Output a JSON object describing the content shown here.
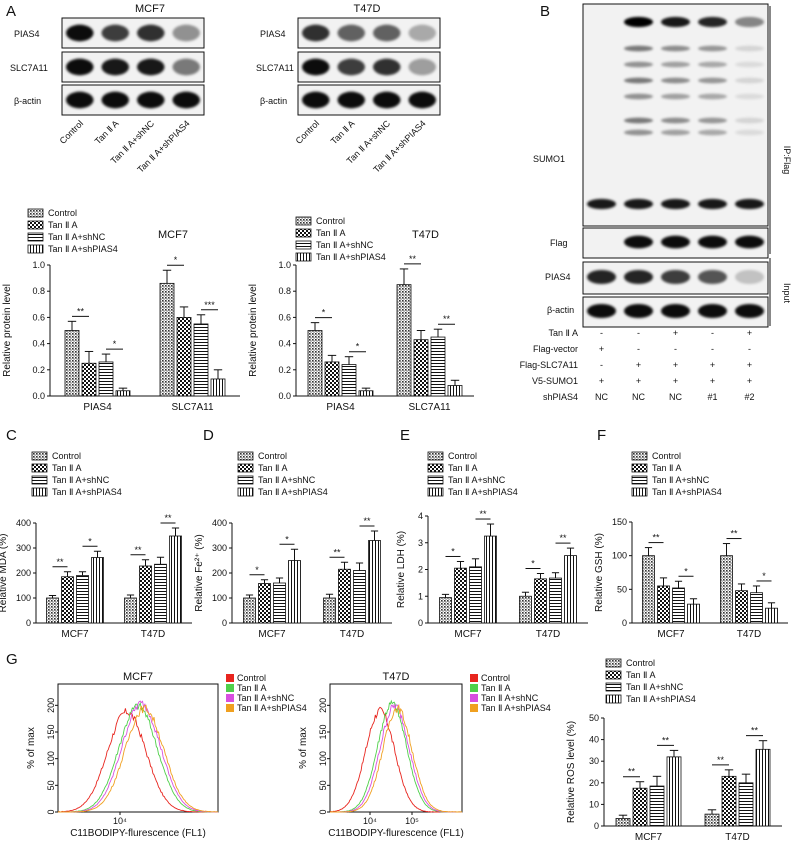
{
  "panels": {
    "A": "A",
    "B": "B",
    "C": "C",
    "D": "D",
    "E": "E",
    "F": "F",
    "G": "G"
  },
  "panelA": {
    "cell_lines": [
      "MCF7",
      "T47D"
    ],
    "blot_labels": [
      "PIAS4",
      "SLC7A11",
      "β-actin"
    ],
    "lanes": [
      "Control",
      "Tan Ⅱ A",
      "Tan Ⅱ A+shNC",
      "Tan Ⅱ A+shPIAS4"
    ],
    "legend": [
      "Control",
      "Tan Ⅱ A",
      "Tan Ⅱ A+shNC",
      "Tan Ⅱ A+shPIAS4"
    ]
  },
  "panelB": {
    "blot_labels": [
      "SUMO1",
      "Flag",
      "PIAS4",
      "β-actin"
    ],
    "side_labels": [
      "IP:Flag",
      "Input"
    ],
    "table": {
      "rows": [
        {
          "label": "Tan Ⅱ A",
          "vals": [
            "-",
            "-",
            "+",
            "-",
            "+"
          ]
        },
        {
          "label": "Flag-vector",
          "vals": [
            "+",
            "-",
            "-",
            "-",
            "-"
          ]
        },
        {
          "label": "Flag-SLC7A11",
          "vals": [
            "-",
            "+",
            "+",
            "+",
            "+"
          ]
        },
        {
          "label": "V5-SUMO1",
          "vals": [
            "+",
            "+",
            "+",
            "+",
            "+"
          ]
        },
        {
          "label": "shPIAS4",
          "vals": [
            "NC",
            "NC",
            "NC",
            "#1",
            "#2"
          ]
        }
      ]
    }
  },
  "panelG": {
    "titles": [
      "MCF7",
      "T47D"
    ],
    "ylabel": "% of max",
    "xlabel": "C11BODIPY-flurescence (FL1)",
    "legend": [
      {
        "name": "Control",
        "color": "#e8251e"
      },
      {
        "name": "Tan Ⅱ A",
        "color": "#4fd04a"
      },
      {
        "name": "Tan Ⅱ A+shNC",
        "color": "#d84fe0"
      },
      {
        "name": "Tan Ⅱ A+shPIAS4",
        "color": "#f0a020"
      }
    ],
    "yticks_left": [
      "0",
      "50",
      "100",
      "150",
      "200"
    ],
    "yticks_right": [
      "0",
      "50",
      "100",
      "150",
      "200"
    ],
    "xticks_left": [
      "10⁴"
    ],
    "xticks_right": [
      "10⁴",
      "10⁵"
    ]
  },
  "chart_data": [
    {
      "type": "bar",
      "id": "A-MCF7",
      "title": "MCF7",
      "ylabel": "Relative protein level",
      "categories": [
        "PIAS4",
        "SLC7A11"
      ],
      "ylim": [
        0,
        1.0
      ],
      "yticks": [
        "0.0",
        "0.2",
        "0.4",
        "0.6",
        "0.8",
        "1.0"
      ],
      "series": [
        {
          "name": "Control",
          "values": [
            0.5,
            0.86
          ]
        },
        {
          "name": "Tan Ⅱ A",
          "values": [
            0.25,
            0.6
          ]
        },
        {
          "name": "Tan Ⅱ A+shNC",
          "values": [
            0.26,
            0.55
          ]
        },
        {
          "name": "Tan Ⅱ A+shPIAS4",
          "values": [
            0.04,
            0.13
          ]
        }
      ],
      "errors": [
        [
          0.07,
          0.1
        ],
        [
          0.09,
          0.08
        ],
        [
          0.06,
          0.07
        ],
        [
          0.02,
          0.07
        ]
      ],
      "sig": [
        {
          "cat": 0,
          "a": 0,
          "b": 1,
          "t": "**"
        },
        {
          "cat": 0,
          "a": 2,
          "b": 3,
          "t": "*"
        },
        {
          "cat": 1,
          "a": 0,
          "b": 1,
          "t": "*"
        },
        {
          "cat": 1,
          "a": 2,
          "b": 3,
          "t": "***"
        }
      ]
    },
    {
      "type": "bar",
      "id": "A-T47D",
      "title": "T47D",
      "ylabel": "Relative protein level",
      "categories": [
        "PIAS4",
        "SLC7A11"
      ],
      "ylim": [
        0,
        1.0
      ],
      "yticks": [
        "0.0",
        "0.2",
        "0.4",
        "0.6",
        "0.8",
        "1.0"
      ],
      "series": [
        {
          "name": "Control",
          "values": [
            0.5,
            0.85
          ]
        },
        {
          "name": "Tan Ⅱ A",
          "values": [
            0.26,
            0.43
          ]
        },
        {
          "name": "Tan Ⅱ A+shNC",
          "values": [
            0.24,
            0.45
          ]
        },
        {
          "name": "Tan Ⅱ A+shPIAS4",
          "values": [
            0.04,
            0.08
          ]
        }
      ],
      "errors": [
        [
          0.06,
          0.12
        ],
        [
          0.05,
          0.07
        ],
        [
          0.06,
          0.06
        ],
        [
          0.02,
          0.04
        ]
      ],
      "sig": [
        {
          "cat": 0,
          "a": 0,
          "b": 1,
          "t": "*"
        },
        {
          "cat": 0,
          "a": 2,
          "b": 3,
          "t": "*"
        },
        {
          "cat": 1,
          "a": 0,
          "b": 1,
          "t": "**"
        },
        {
          "cat": 1,
          "a": 2,
          "b": 3,
          "t": "**"
        }
      ]
    },
    {
      "type": "bar",
      "id": "C",
      "ylabel": "Relative MDA (%)",
      "categories": [
        "MCF7",
        "T47D"
      ],
      "ylim": [
        0,
        400
      ],
      "yticks": [
        "0",
        "100",
        "200",
        "300",
        "400"
      ],
      "series": [
        {
          "name": "Control",
          "values": [
            100,
            100
          ]
        },
        {
          "name": "Tan Ⅱ A",
          "values": [
            185,
            228
          ]
        },
        {
          "name": "Tan Ⅱ A+shNC",
          "values": [
            190,
            235
          ]
        },
        {
          "name": "Tan Ⅱ A+shPIAS4",
          "values": [
            262,
            348
          ]
        }
      ],
      "errors": [
        [
          10,
          12
        ],
        [
          20,
          25
        ],
        [
          15,
          28
        ],
        [
          25,
          32
        ]
      ],
      "sig": [
        {
          "cat": 0,
          "a": 0,
          "b": 1,
          "t": "**"
        },
        {
          "cat": 0,
          "a": 2,
          "b": 3,
          "t": "*"
        },
        {
          "cat": 1,
          "a": 0,
          "b": 1,
          "t": "**"
        },
        {
          "cat": 1,
          "a": 2,
          "b": 3,
          "t": "**"
        }
      ]
    },
    {
      "type": "bar",
      "id": "D",
      "ylabel": "Relative Fe²⁺ (%)",
      "categories": [
        "MCF7",
        "T47D"
      ],
      "ylim": [
        0,
        400
      ],
      "yticks": [
        "0",
        "100",
        "200",
        "300",
        "400"
      ],
      "series": [
        {
          "name": "Control",
          "values": [
            100,
            100
          ]
        },
        {
          "name": "Tan Ⅱ A",
          "values": [
            158,
            215
          ]
        },
        {
          "name": "Tan Ⅱ A+shNC",
          "values": [
            160,
            210
          ]
        },
        {
          "name": "Tan Ⅱ A+shPIAS4",
          "values": [
            250,
            330
          ]
        }
      ],
      "errors": [
        [
          12,
          15
        ],
        [
          15,
          28
        ],
        [
          20,
          30
        ],
        [
          45,
          38
        ]
      ],
      "sig": [
        {
          "cat": 0,
          "a": 0,
          "b": 1,
          "t": "*"
        },
        {
          "cat": 0,
          "a": 2,
          "b": 3,
          "t": "*"
        },
        {
          "cat": 1,
          "a": 0,
          "b": 1,
          "t": "**"
        },
        {
          "cat": 1,
          "a": 2,
          "b": 3,
          "t": "**"
        }
      ]
    },
    {
      "type": "bar",
      "id": "E",
      "ylabel": "Relative LDH (%)",
      "categories": [
        "MCF7",
        "T47D"
      ],
      "ylim": [
        0,
        4
      ],
      "yticks": [
        "0",
        "1",
        "2",
        "3",
        "4"
      ],
      "series": [
        {
          "name": "Control",
          "values": [
            0.95,
            1.0
          ]
        },
        {
          "name": "Tan Ⅱ A",
          "values": [
            2.05,
            1.65
          ]
        },
        {
          "name": "Tan Ⅱ A+shNC",
          "values": [
            2.1,
            1.68
          ]
        },
        {
          "name": "Tan Ⅱ A+shPIAS4",
          "values": [
            3.25,
            2.52
          ]
        }
      ],
      "errors": [
        [
          0.12,
          0.15
        ],
        [
          0.25,
          0.2
        ],
        [
          0.3,
          0.2
        ],
        [
          0.45,
          0.28
        ]
      ],
      "sig": [
        {
          "cat": 0,
          "a": 0,
          "b": 1,
          "t": "*"
        },
        {
          "cat": 0,
          "a": 2,
          "b": 3,
          "t": "**"
        },
        {
          "cat": 1,
          "a": 0,
          "b": 1,
          "t": "*"
        },
        {
          "cat": 1,
          "a": 2,
          "b": 3,
          "t": "**"
        }
      ]
    },
    {
      "type": "bar",
      "id": "F",
      "ylabel": "Relative GSH (%)",
      "categories": [
        "MCF7",
        "T47D"
      ],
      "ylim": [
        0,
        150
      ],
      "yticks": [
        "0",
        "50",
        "100",
        "150"
      ],
      "series": [
        {
          "name": "Control",
          "values": [
            100,
            100
          ]
        },
        {
          "name": "Tan Ⅱ A",
          "values": [
            55,
            48
          ]
        },
        {
          "name": "Tan Ⅱ A+shNC",
          "values": [
            52,
            45
          ]
        },
        {
          "name": "Tan Ⅱ A+shPIAS4",
          "values": [
            28,
            22
          ]
        }
      ],
      "errors": [
        [
          12,
          18
        ],
        [
          12,
          10
        ],
        [
          10,
          10
        ],
        [
          8,
          8
        ]
      ],
      "sig": [
        {
          "cat": 0,
          "a": 0,
          "b": 1,
          "t": "**"
        },
        {
          "cat": 0,
          "a": 2,
          "b": 3,
          "t": "*"
        },
        {
          "cat": 1,
          "a": 0,
          "b": 1,
          "t": "**"
        },
        {
          "cat": 1,
          "a": 2,
          "b": 3,
          "t": "*"
        }
      ]
    },
    {
      "type": "bar",
      "id": "G-ROS",
      "ylabel": "Relative ROS level (%)",
      "categories": [
        "MCF7",
        "T47D"
      ],
      "ylim": [
        0,
        50
      ],
      "yticks": [
        "0",
        "10",
        "20",
        "30",
        "40",
        "50"
      ],
      "series": [
        {
          "name": "Control",
          "values": [
            3.5,
            5.5
          ]
        },
        {
          "name": "Tan Ⅱ A",
          "values": [
            17.5,
            23
          ]
        },
        {
          "name": "Tan Ⅱ A+shNC",
          "values": [
            18.5,
            20
          ]
        },
        {
          "name": "Tan Ⅱ A+shPIAS4",
          "values": [
            32,
            35.5
          ]
        }
      ],
      "errors": [
        [
          1.5,
          2
        ],
        [
          3,
          3
        ],
        [
          4.5,
          4
        ],
        [
          3,
          4
        ]
      ],
      "sig": [
        {
          "cat": 0,
          "a": 0,
          "b": 1,
          "t": "**"
        },
        {
          "cat": 0,
          "a": 2,
          "b": 3,
          "t": "**"
        },
        {
          "cat": 1,
          "a": 0,
          "b": 1,
          "t": "**"
        },
        {
          "cat": 1,
          "a": 2,
          "b": 3,
          "t": "**"
        }
      ]
    }
  ]
}
